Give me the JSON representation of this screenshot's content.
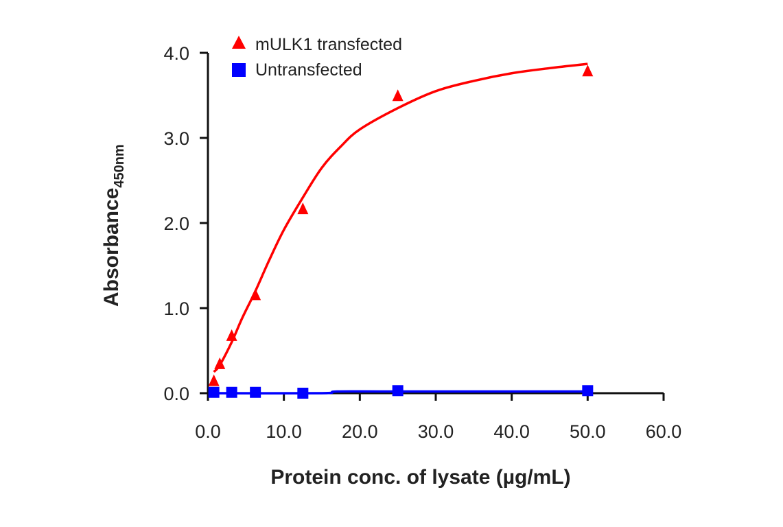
{
  "chart_data": {
    "type": "scatter",
    "xlabel": "Protein conc. of lysate (µg/mL)",
    "ylabel": "Absorbance",
    "ylabel_subscript": "450nm",
    "xlim": [
      0,
      60
    ],
    "ylim": [
      0,
      4
    ],
    "x_ticks": [
      "0.0",
      "10.0",
      "20.0",
      "30.0",
      "40.0",
      "50.0",
      "60.0"
    ],
    "y_ticks": [
      "0.0",
      "1.0",
      "2.0",
      "3.0",
      "4.0"
    ],
    "grid": false,
    "legend_position": "top-left",
    "series": [
      {
        "name": "mULK1 transfected",
        "color": "#ff0000",
        "marker": "triangle",
        "x": [
          0.78,
          1.56,
          3.13,
          6.25,
          12.5,
          25,
          50
        ],
        "y": [
          0.14,
          0.34,
          0.67,
          1.15,
          2.16,
          3.49,
          3.78
        ],
        "fit_x": [
          0.78,
          1.56,
          3.13,
          4.5,
          6.25,
          8,
          10,
          12.5,
          15,
          17.5,
          20,
          25,
          30,
          35,
          40,
          45,
          50
        ],
        "fit_y": [
          0.25,
          0.33,
          0.6,
          0.88,
          1.2,
          1.55,
          1.92,
          2.3,
          2.65,
          2.9,
          3.1,
          3.35,
          3.55,
          3.67,
          3.76,
          3.82,
          3.87
        ]
      },
      {
        "name": "Untransfected",
        "color": "#0000ff",
        "marker": "square",
        "x": [
          0.78,
          3.13,
          6.25,
          12.5,
          25,
          50
        ],
        "y": [
          0.01,
          0.01,
          0.01,
          0.0,
          0.03,
          0.03
        ],
        "fit_x": [
          0.78,
          15,
          17,
          25,
          50
        ],
        "fit_y": [
          0.0,
          0.0,
          0.02,
          0.02,
          0.02
        ]
      }
    ]
  }
}
